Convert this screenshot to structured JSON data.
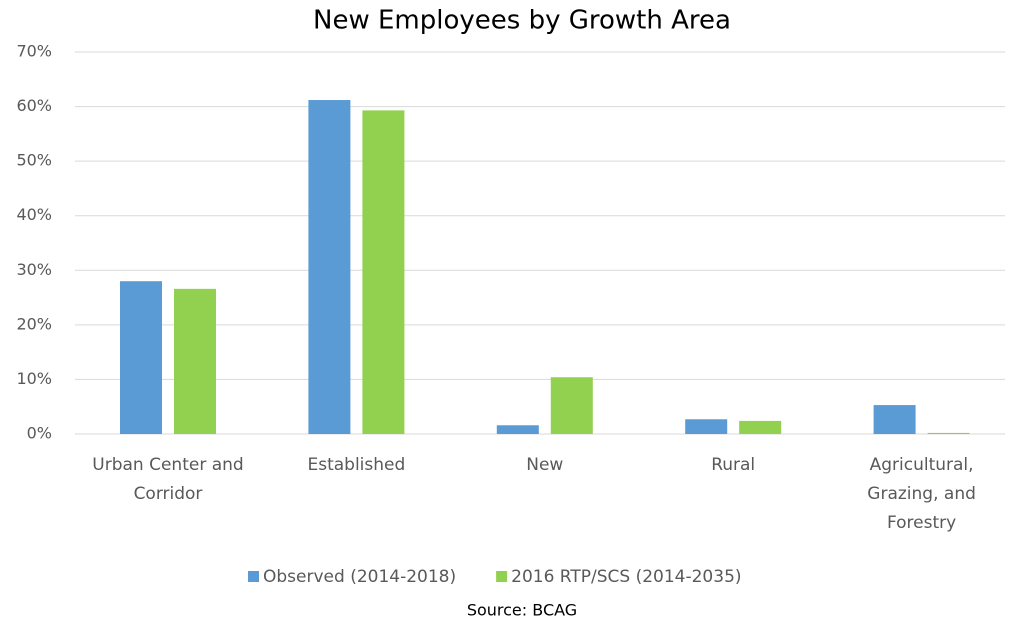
{
  "chart_data": {
    "type": "bar",
    "title": "New Employees by Growth Area",
    "categories": [
      "Urban Center and Corridor",
      "Established",
      "New",
      "Rural",
      "Agricultural, Grazing, and Forestry"
    ],
    "series": [
      {
        "name": "Observed (2014-2018)",
        "color": "#5b9bd5",
        "values": [
          28.0,
          61.2,
          1.6,
          2.7,
          5.3
        ]
      },
      {
        "name": "2016 RTP/SCS (2014-2035)",
        "color": "#92d050",
        "values": [
          26.6,
          59.3,
          10.4,
          2.4,
          0.2
        ]
      }
    ],
    "ylim": [
      0,
      70
    ],
    "yticks": [
      {
        "value": 0,
        "label": "0%"
      },
      {
        "value": 10,
        "label": "10%"
      },
      {
        "value": 20,
        "label": "20%"
      },
      {
        "value": 30,
        "label": "30%"
      },
      {
        "value": 40,
        "label": "40%"
      },
      {
        "value": 50,
        "label": "50%"
      },
      {
        "value": 60,
        "label": "60%"
      },
      {
        "value": 70,
        "label": "70%"
      }
    ],
    "grid": true,
    "legend": "bottom",
    "source": "Source: BCAG"
  }
}
